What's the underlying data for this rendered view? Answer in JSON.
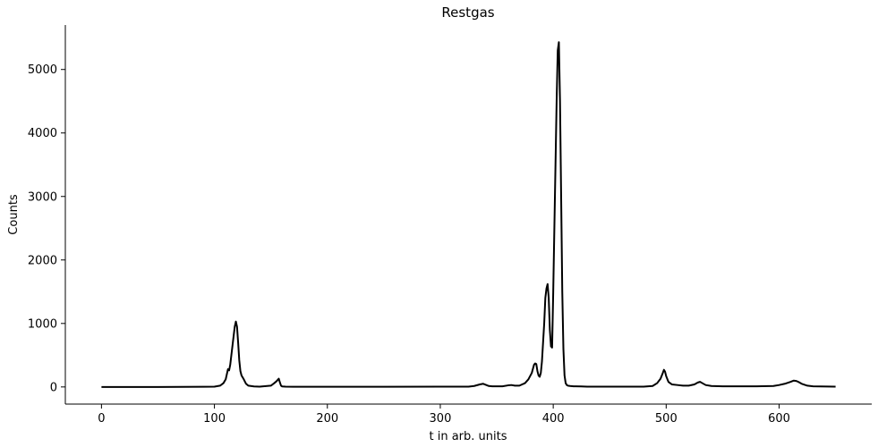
{
  "chart_data": {
    "type": "line",
    "title": "Restgas",
    "xlabel": "t in arb. units",
    "ylabel": "Counts",
    "xlim": [
      -32,
      682
    ],
    "ylim": [
      -270,
      5700
    ],
    "xticks": [
      0,
      100,
      200,
      300,
      400,
      500,
      600
    ],
    "yticks": [
      0,
      1000,
      2000,
      3000,
      4000,
      5000
    ],
    "grid": false,
    "legend": "none",
    "series": [
      {
        "color": "#000000",
        "x": [
          0,
          50,
          90,
          100,
          105,
          108,
          110,
          112,
          113,
          114,
          115,
          116,
          117,
          118,
          119,
          120,
          121,
          122,
          123,
          124,
          126,
          128,
          130,
          135,
          140,
          150,
          153,
          155,
          157,
          158,
          159,
          160,
          163,
          170,
          200,
          250,
          300,
          325,
          330,
          335,
          338,
          340,
          343,
          346,
          350,
          355,
          360,
          363,
          366,
          370,
          375,
          378,
          381,
          383,
          384,
          385,
          386,
          387,
          388,
          389,
          390,
          391,
          392,
          393,
          394,
          395,
          396,
          397,
          398,
          399,
          400,
          401,
          402,
          403,
          404,
          405,
          406,
          407,
          408,
          409,
          410,
          411,
          412,
          413,
          415,
          418,
          420,
          425,
          430,
          450,
          480,
          488,
          492,
          495,
          497,
          498,
          499,
          500,
          502,
          505,
          510,
          515,
          520,
          525,
          528,
          530,
          532,
          535,
          540,
          550,
          580,
          595,
          600,
          605,
          610,
          613,
          615,
          617,
          620,
          625,
          630,
          650
        ],
        "y": [
          0,
          0,
          2,
          5,
          20,
          60,
          120,
          280,
          260,
          350,
          500,
          650,
          800,
          950,
          1030,
          950,
          700,
          420,
          250,
          180,
          120,
          50,
          20,
          8,
          5,
          20,
          60,
          90,
          130,
          70,
          20,
          8,
          5,
          2,
          3,
          3,
          5,
          5,
          15,
          40,
          50,
          35,
          15,
          10,
          10,
          10,
          25,
          30,
          20,
          20,
          60,
          120,
          220,
          350,
          370,
          360,
          250,
          180,
          160,
          220,
          400,
          700,
          1000,
          1400,
          1550,
          1620,
          1400,
          900,
          640,
          620,
          1500,
          2500,
          3500,
          4500,
          5300,
          5430,
          4500,
          3000,
          1500,
          600,
          180,
          60,
          30,
          20,
          15,
          10,
          10,
          8,
          5,
          5,
          5,
          15,
          60,
          130,
          220,
          270,
          240,
          170,
          80,
          40,
          30,
          20,
          20,
          40,
          70,
          80,
          60,
          30,
          15,
          10,
          10,
          15,
          30,
          50,
          80,
          100,
          95,
          80,
          50,
          20,
          10,
          5
        ]
      }
    ]
  }
}
